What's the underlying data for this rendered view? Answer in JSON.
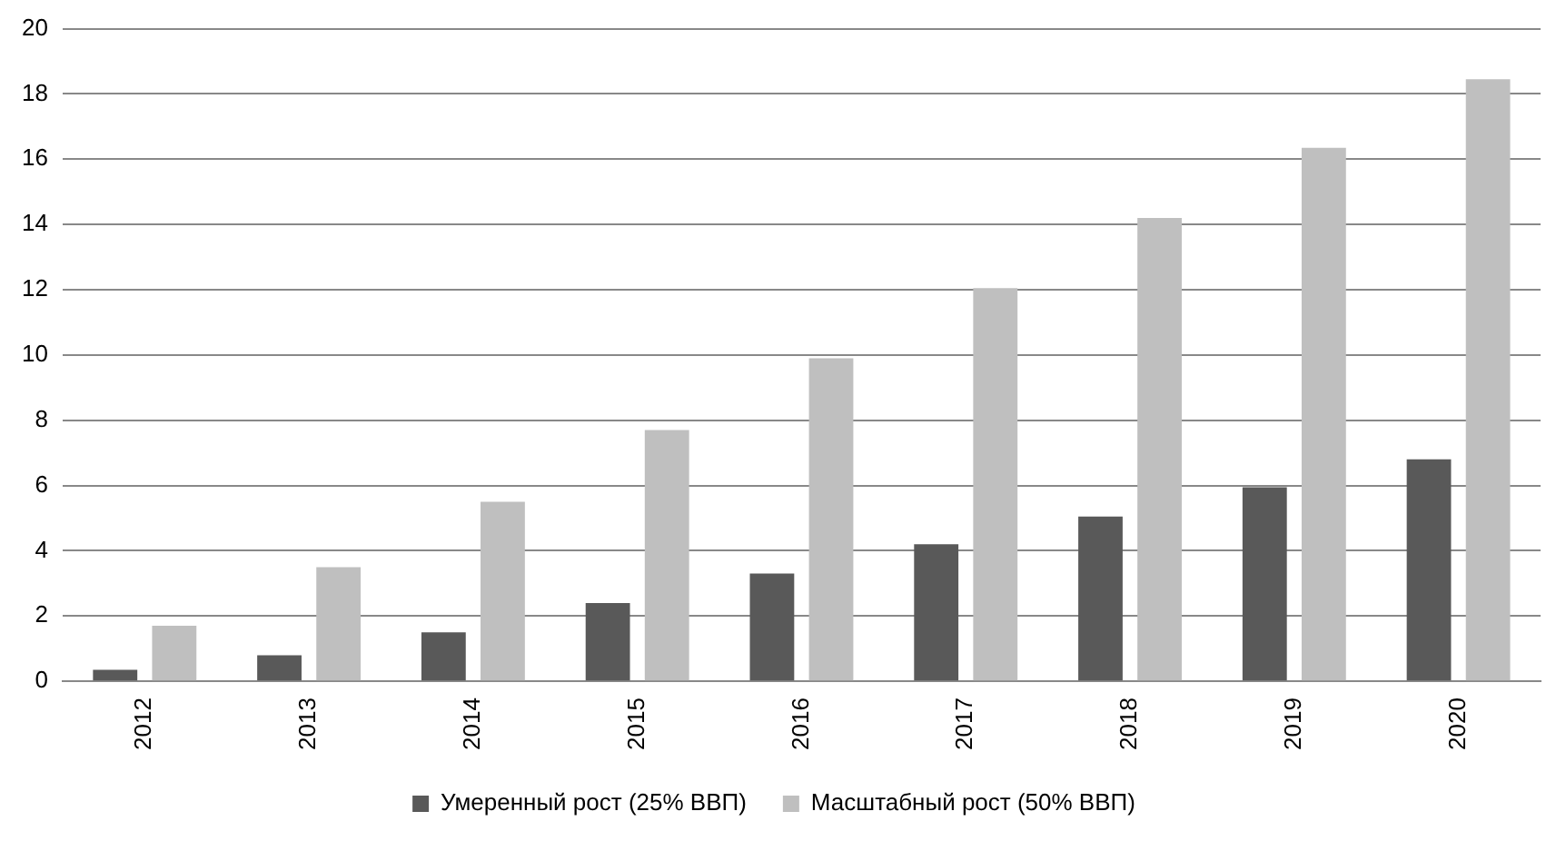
{
  "chart_data": {
    "type": "bar",
    "categories": [
      "2012",
      "2013",
      "2014",
      "2015",
      "2016",
      "2017",
      "2018",
      "2019",
      "2020"
    ],
    "series": [
      {
        "name": "Умеренный рост (25% ВВП)",
        "color": "#595959",
        "values": [
          0.35,
          0.8,
          1.5,
          2.4,
          3.3,
          4.2,
          5.05,
          5.95,
          6.8
        ]
      },
      {
        "name": "Масштабный рост (50% ВВП)",
        "color": "#bfbfbf",
        "values": [
          1.7,
          3.5,
          5.5,
          7.7,
          9.9,
          12.05,
          14.2,
          16.35,
          18.45
        ]
      }
    ],
    "ylim": [
      0,
      20
    ],
    "yticks": [
      0,
      2,
      4,
      6,
      8,
      10,
      12,
      14,
      16,
      18,
      20
    ],
    "grid": "y",
    "legend": "bottom"
  }
}
